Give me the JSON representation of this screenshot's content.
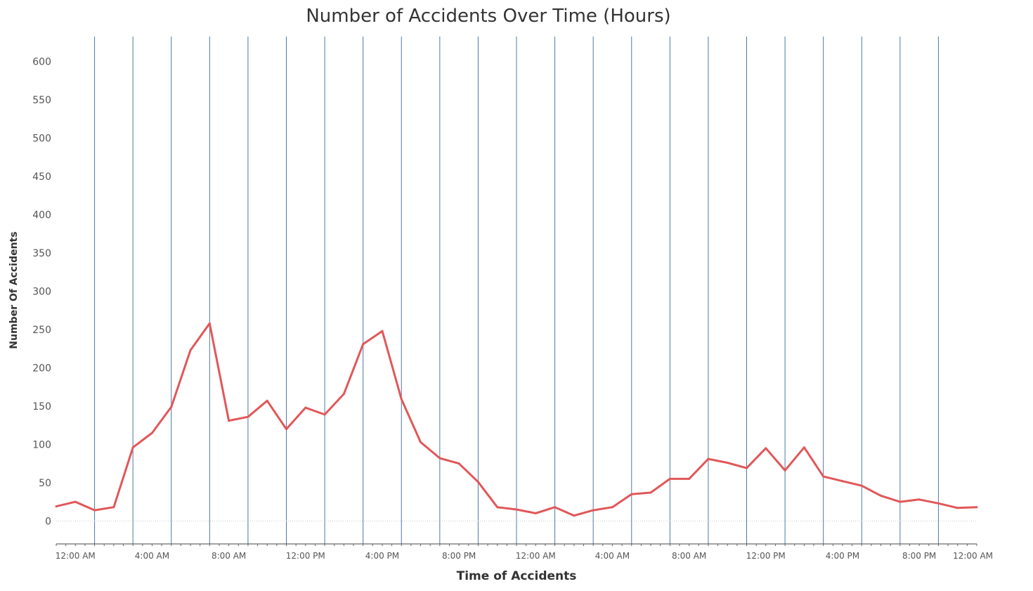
{
  "chart_data": {
    "type": "line",
    "title": "Number of Accidents Over Time (Hours)",
    "xlabel": "Time of Accidents",
    "ylabel": "Number Of Accidents",
    "ylim": [
      -30,
      630
    ],
    "yticks": [
      0,
      50,
      100,
      150,
      200,
      250,
      300,
      350,
      400,
      450,
      500,
      550,
      600
    ],
    "x_unit": "hours",
    "xlim": [
      -1,
      47
    ],
    "xtick_labels": [
      {
        "x": 0,
        "label": "12:00 AM"
      },
      {
        "x": 4,
        "label": "4:00 AM"
      },
      {
        "x": 8,
        "label": "8:00 AM"
      },
      {
        "x": 12,
        "label": "12:00 PM"
      },
      {
        "x": 16,
        "label": "4:00 PM"
      },
      {
        "x": 20,
        "label": "8:00 PM"
      },
      {
        "x": 24,
        "label": "12:00 AM"
      },
      {
        "x": 28,
        "label": "4:00 AM"
      },
      {
        "x": 32,
        "label": "8:00 AM"
      },
      {
        "x": 36,
        "label": "12:00 PM"
      },
      {
        "x": 40,
        "label": "4:00 PM"
      },
      {
        "x": 44,
        "label": "8:00 PM"
      },
      {
        "x": 46.8,
        "label": "12:00 AM"
      }
    ],
    "vertical_lines_x": [
      1,
      3,
      5,
      7,
      9,
      11,
      13,
      15,
      17,
      19,
      21,
      23,
      25,
      27,
      29,
      31,
      33,
      35,
      37,
      39,
      41,
      43,
      45
    ],
    "grid": "vertical lines only",
    "line_color": "#e15759",
    "vline_color": "#4e79a7",
    "series": [
      {
        "x": [
          -1,
          0,
          1,
          2,
          3,
          4,
          5,
          6,
          7,
          8,
          9,
          10,
          11,
          12,
          13,
          14,
          15,
          16,
          17,
          18,
          19,
          20,
          21,
          22,
          23,
          24,
          25,
          26,
          27,
          28,
          29,
          30,
          31,
          32,
          33,
          34,
          35,
          36,
          37,
          38,
          39,
          40,
          41,
          42,
          43,
          44,
          45,
          46,
          47
        ],
        "values": [
          19,
          25,
          14,
          18,
          96,
          115,
          149,
          223,
          258,
          131,
          136,
          157,
          120,
          148,
          139,
          166,
          231,
          248,
          159,
          103,
          82,
          75,
          51,
          18,
          15,
          10,
          18,
          7,
          14,
          18,
          35,
          37,
          55,
          55,
          81,
          76,
          69,
          95,
          66,
          96,
          58,
          52,
          46,
          33,
          25,
          28,
          23,
          17,
          18
        ]
      }
    ]
  }
}
